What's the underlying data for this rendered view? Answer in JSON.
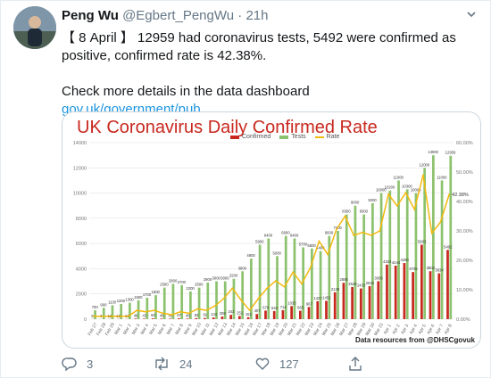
{
  "tweet": {
    "author_name": "Peng Wu",
    "handle": "@Egbert_PengWu",
    "dot": "·",
    "time": "21h",
    "text_line1": "【 8 April 】 12959 had coronavirus tests, 5492 were confirmed as positive, confirmed rate is 42.38%.",
    "text_line2": "Check more details in the data dashboard",
    "link": "gov.uk/government/pub…"
  },
  "actions": {
    "reply_count": "3",
    "retweet_count": "24",
    "like_count": "127"
  },
  "chart_data": {
    "type": "bar",
    "title": "UK Coronavirus Daily Confirmed Rate",
    "legend": [
      "Confirmed",
      "Tests",
      "Rate"
    ],
    "credit": "Data resources from @DHSCgovuk",
    "colors": {
      "confirmed": "#c8281e",
      "tests": "#8cc26e",
      "rate": "#f2b90f",
      "title": "#c8281e"
    },
    "ylim": [
      0,
      14000
    ],
    "y2lim": [
      0,
      60
    ],
    "y_ticks": [
      "0",
      "2000",
      "4000",
      "6000",
      "8000",
      "10000",
      "12000",
      "14000"
    ],
    "y2_ticks": [
      "0.00%",
      "10.00%",
      "20.00%",
      "30.00%",
      "40.00%",
      "50.00%",
      "60.00%"
    ],
    "categories": [
      "Feb 27",
      "Feb 28",
      "Feb 29",
      "Mar 1",
      "Mar 2",
      "Mar 3",
      "Mar 4",
      "Mar 5",
      "Mar 6",
      "Mar 7",
      "Mar 8",
      "Mar 9",
      "Mar 10",
      "Mar 11",
      "Mar 12",
      "Mar 13",
      "Mar 14",
      "Mar 15",
      "Mar 16",
      "Mar 17",
      "Mar 18",
      "Mar 19",
      "Mar 20",
      "Mar 21",
      "Mar 22",
      "Mar 23",
      "Mar 24",
      "Mar 25",
      "Mar 26",
      "Mar 27",
      "Mar 28",
      "Mar 29",
      "Mar 30",
      "Mar 31",
      "Apr 1",
      "Apr 2",
      "Apr 3",
      "Apr 4",
      "Apr 5",
      "Apr 6",
      "Apr 7",
      "Apr 8"
    ],
    "series": [
      {
        "name": "Confirmed",
        "values": [
          5,
          3,
          12,
          13,
          13,
          48,
          43,
          60,
          48,
          43,
          67,
          46,
          83,
          91,
          134,
          208,
          342,
          251,
          152,
          407,
          676,
          643,
          714,
          1035,
          665,
          967,
          1427,
          1452,
          2129,
          2885,
          2546,
          2433,
          2619,
          3009,
          4324,
          4244,
          4450,
          3735,
          5903,
          3802,
          3634,
          5492
        ]
      },
      {
        "name": "Tests",
        "values": [
          700,
          900,
          1100,
          1200,
          1300,
          1500,
          1700,
          1900,
          2500,
          2800,
          2700,
          2200,
          2500,
          2900,
          3000,
          3000,
          3200,
          3800,
          4800,
          5900,
          6400,
          5000,
          6600,
          6400,
          5700,
          5600,
          5400,
          6600,
          7000,
          8300,
          9000,
          8300,
          9200,
          10000,
          10200,
          11000,
          10300,
          10000,
          12000,
          13000,
          11000,
          12959
        ]
      },
      {
        "name": "Rate",
        "values": [
          1,
          1,
          1,
          1,
          1,
          3,
          2.5,
          3,
          2,
          1.5,
          2.5,
          2,
          3.5,
          3,
          4.5,
          7,
          10.5,
          6.5,
          3,
          7,
          10.5,
          13,
          11,
          16,
          12,
          17.5,
          26.5,
          22,
          30.5,
          35,
          28.5,
          29.5,
          28.5,
          30,
          42.5,
          38.5,
          43,
          37.3,
          49,
          29.2,
          33,
          42.38
        ]
      }
    ],
    "point_labels": [
      "",
      "",
      "",
      "",
      "",
      "",
      "",
      "",
      "",
      "",
      "",
      "",
      "",
      "",
      "",
      "",
      "",
      "",
      "",
      "",
      "",
      "",
      "",
      "",
      "",
      "",
      "",
      "",
      "",
      "",
      "",
      "",
      "",
      "",
      "",
      "",
      "",
      "",
      "",
      "",
      "",
      "42.38%"
    ]
  }
}
